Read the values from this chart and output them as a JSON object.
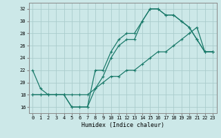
{
  "xlabel": "Humidex (Indice chaleur)",
  "bg_color": "#cce8e8",
  "grid_color": "#aacccc",
  "line_color": "#1a7a6a",
  "xlim": [
    -0.5,
    23.5
  ],
  "ylim": [
    15.0,
    33.0
  ],
  "xticks": [
    0,
    1,
    2,
    3,
    4,
    5,
    6,
    7,
    8,
    9,
    10,
    11,
    12,
    13,
    14,
    15,
    16,
    17,
    18,
    19,
    20,
    21,
    22,
    23
  ],
  "yticks": [
    16,
    18,
    20,
    22,
    24,
    26,
    28,
    30,
    32
  ],
  "series1_x": [
    0,
    1,
    2,
    3,
    4,
    5,
    6,
    7,
    8,
    9,
    10,
    11,
    12,
    13,
    14,
    15,
    16,
    17,
    18,
    19,
    20,
    21,
    22,
    23
  ],
  "series1_y": [
    22,
    19,
    18,
    18,
    18,
    16,
    16,
    16,
    22,
    22,
    25,
    27,
    28,
    28,
    30,
    32,
    32,
    31,
    31,
    30,
    29,
    27,
    25,
    25
  ],
  "series2_x": [
    0,
    1,
    2,
    3,
    4,
    5,
    6,
    7,
    8,
    9,
    10,
    11,
    12,
    13,
    14,
    15,
    16,
    17,
    18,
    19,
    20,
    21,
    22,
    23
  ],
  "series2_y": [
    18,
    18,
    18,
    18,
    18,
    16,
    16,
    16,
    19,
    21,
    24,
    26,
    27,
    27,
    30,
    32,
    32,
    31,
    31,
    30,
    29,
    27,
    25,
    25
  ],
  "series3_x": [
    0,
    1,
    2,
    3,
    4,
    5,
    6,
    7,
    8,
    9,
    10,
    11,
    12,
    13,
    14,
    15,
    16,
    17,
    18,
    19,
    20,
    21,
    22,
    23
  ],
  "series3_y": [
    18,
    18,
    18,
    18,
    18,
    18,
    18,
    18,
    19,
    20,
    21,
    21,
    22,
    22,
    23,
    24,
    25,
    25,
    26,
    27,
    28,
    29,
    25,
    25
  ]
}
